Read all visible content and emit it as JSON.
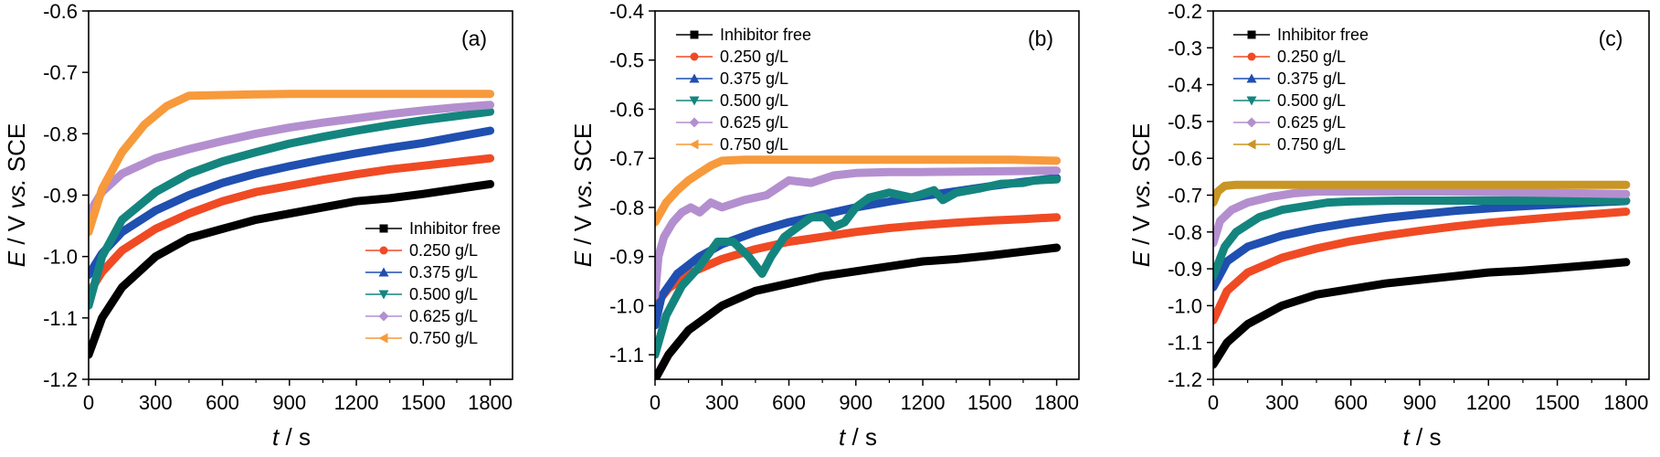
{
  "colors": {
    "Inhibitor free": "#000000",
    "0.250 g/L": "#f04a24",
    "0.375 g/L": "#1f4fb0",
    "0.500 g/L": "#14857e",
    "0.625 g/L": "#b48fcf",
    "0.750 g/L": "#f79a3c",
    "0.750 g/L (c)": "#c99524"
  },
  "chart_data": [
    {
      "type": "line",
      "panel_label": "(a)",
      "xlabel_italic": "t",
      "xlabel_rest": " / s",
      "ylabel_italic_1": "E",
      "ylabel_mid": " / V ",
      "ylabel_italic_2": "vs.",
      "ylabel_rest": " SCE",
      "xlim": [
        0,
        1900
      ],
      "ylim": [
        -1.2,
        -0.6
      ],
      "xticks": [
        0,
        300,
        600,
        900,
        1200,
        1500,
        1800
      ],
      "yticks": [
        -1.2,
        -1.1,
        -1.0,
        -0.9,
        -0.8,
        -0.7,
        -0.6
      ],
      "ytick_labels": [
        "-1.2",
        "-1.1",
        "-1.0",
        "-0.9",
        "-0.8",
        "-0.7",
        "-0.6"
      ],
      "legend_position": "lower-right",
      "series": [
        {
          "name": "Inhibitor free",
          "marker": "square",
          "x": [
            0,
            60,
            150,
            300,
            450,
            600,
            750,
            900,
            1050,
            1200,
            1350,
            1500,
            1650,
            1800
          ],
          "y": [
            -1.16,
            -1.1,
            -1.05,
            -1.0,
            -0.97,
            -0.955,
            -0.94,
            -0.93,
            -0.92,
            -0.91,
            -0.905,
            -0.898,
            -0.89,
            -0.882
          ]
        },
        {
          "name": "0.250 g/L",
          "marker": "circle",
          "x": [
            0,
            60,
            150,
            300,
            450,
            600,
            750,
            900,
            1050,
            1200,
            1350,
            1500,
            1650,
            1800
          ],
          "y": [
            -1.06,
            -1.025,
            -0.99,
            -0.955,
            -0.93,
            -0.91,
            -0.895,
            -0.885,
            -0.875,
            -0.866,
            -0.858,
            -0.852,
            -0.846,
            -0.84
          ]
        },
        {
          "name": "0.375 g/L",
          "marker": "triangle-up",
          "x": [
            0,
            60,
            150,
            300,
            450,
            600,
            750,
            900,
            1050,
            1200,
            1350,
            1500,
            1650,
            1800
          ],
          "y": [
            -1.03,
            -0.995,
            -0.96,
            -0.925,
            -0.9,
            -0.88,
            -0.865,
            -0.853,
            -0.842,
            -0.832,
            -0.823,
            -0.815,
            -0.805,
            -0.795
          ]
        },
        {
          "name": "0.500 g/L",
          "marker": "triangle-down",
          "x": [
            0,
            60,
            150,
            300,
            450,
            600,
            750,
            900,
            1050,
            1200,
            1350,
            1500,
            1650,
            1800
          ],
          "y": [
            -1.08,
            -1.0,
            -0.94,
            -0.895,
            -0.865,
            -0.845,
            -0.83,
            -0.816,
            -0.805,
            -0.795,
            -0.786,
            -0.778,
            -0.771,
            -0.764
          ]
        },
        {
          "name": "0.625 g/L",
          "marker": "diamond",
          "x": [
            0,
            60,
            150,
            300,
            450,
            600,
            750,
            900,
            1050,
            1200,
            1350,
            1500,
            1650,
            1800
          ],
          "y": [
            -0.93,
            -0.895,
            -0.865,
            -0.84,
            -0.825,
            -0.812,
            -0.8,
            -0.79,
            -0.782,
            -0.775,
            -0.768,
            -0.762,
            -0.757,
            -0.753
          ]
        },
        {
          "name": "0.750 g/L",
          "marker": "triangle-left",
          "x": [
            0,
            60,
            150,
            250,
            350,
            450,
            600,
            750,
            900,
            1050,
            1200,
            1350,
            1500,
            1650,
            1800
          ],
          "y": [
            -0.96,
            -0.89,
            -0.83,
            -0.785,
            -0.755,
            -0.738,
            -0.737,
            -0.736,
            -0.735,
            -0.735,
            -0.735,
            -0.735,
            -0.735,
            -0.735,
            -0.735
          ]
        }
      ]
    },
    {
      "type": "line",
      "panel_label": "(b)",
      "xlabel_italic": "t",
      "xlabel_rest": " / s",
      "ylabel_italic_1": "E",
      "ylabel_mid": " / V ",
      "ylabel_italic_2": "vs.",
      "ylabel_rest": " SCE",
      "xlim": [
        0,
        1900
      ],
      "ylim": [
        -1.15,
        -0.4
      ],
      "xticks": [
        0,
        300,
        600,
        900,
        1200,
        1500,
        1800
      ],
      "yticks": [
        -1.1,
        -1.0,
        -0.9,
        -0.8,
        -0.7,
        -0.6,
        -0.5,
        -0.4
      ],
      "ytick_labels": [
        "-1.1",
        "-1.0",
        "-0.9",
        "-0.8",
        "-0.7",
        "-0.6",
        "-0.5",
        "-0.4"
      ],
      "legend_position": "top-left",
      "series": [
        {
          "name": "Inhibitor free",
          "marker": "square",
          "x": [
            0,
            60,
            150,
            300,
            450,
            600,
            750,
            900,
            1050,
            1200,
            1350,
            1500,
            1650,
            1800
          ],
          "y": [
            -1.15,
            -1.1,
            -1.05,
            -1.0,
            -0.97,
            -0.955,
            -0.94,
            -0.93,
            -0.92,
            -0.91,
            -0.905,
            -0.898,
            -0.89,
            -0.882
          ]
        },
        {
          "name": "0.250 g/L",
          "marker": "circle",
          "x": [
            0,
            60,
            150,
            300,
            450,
            600,
            750,
            900,
            1050,
            1200,
            1350,
            1500,
            1650,
            1800
          ],
          "y": [
            -1.0,
            -0.965,
            -0.935,
            -0.905,
            -0.885,
            -0.87,
            -0.86,
            -0.85,
            -0.842,
            -0.836,
            -0.831,
            -0.827,
            -0.824,
            -0.82
          ]
        },
        {
          "name": "0.375 g/L",
          "marker": "triangle-up",
          "x": [
            0,
            30,
            100,
            200,
            300,
            450,
            600,
            750,
            900,
            1050,
            1200,
            1350,
            1500,
            1650,
            1800
          ],
          "y": [
            -1.04,
            -0.98,
            -0.935,
            -0.9,
            -0.875,
            -0.85,
            -0.83,
            -0.815,
            -0.8,
            -0.788,
            -0.777,
            -0.767,
            -0.757,
            -0.748,
            -0.74
          ]
        },
        {
          "name": "0.500 g/L",
          "marker": "triangle-down",
          "x": [
            0,
            50,
            120,
            200,
            280,
            350,
            420,
            480,
            520,
            580,
            640,
            700,
            760,
            800,
            850,
            900,
            960,
            1050,
            1150,
            1250,
            1290,
            1350,
            1450,
            1550,
            1650,
            1700,
            1800
          ],
          "y": [
            -1.1,
            -1.02,
            -0.96,
            -0.92,
            -0.87,
            -0.87,
            -0.9,
            -0.935,
            -0.9,
            -0.86,
            -0.84,
            -0.82,
            -0.82,
            -0.84,
            -0.83,
            -0.8,
            -0.78,
            -0.77,
            -0.78,
            -0.765,
            -0.785,
            -0.77,
            -0.762,
            -0.752,
            -0.75,
            -0.745,
            -0.743
          ]
        },
        {
          "name": "0.625 g/L",
          "marker": "diamond",
          "x": [
            0,
            15,
            40,
            80,
            120,
            160,
            200,
            250,
            300,
            400,
            500,
            600,
            700,
            800,
            900,
            1050,
            1200,
            1400,
            1600,
            1800
          ],
          "y": [
            -0.98,
            -0.9,
            -0.86,
            -0.83,
            -0.81,
            -0.8,
            -0.81,
            -0.79,
            -0.8,
            -0.785,
            -0.775,
            -0.745,
            -0.75,
            -0.735,
            -0.73,
            -0.728,
            -0.728,
            -0.727,
            -0.726,
            -0.725
          ]
        },
        {
          "name": "0.750 g/L",
          "marker": "triangle-left",
          "x": [
            0,
            50,
            100,
            150,
            200,
            250,
            300,
            400,
            500,
            600,
            800,
            1000,
            1200,
            1400,
            1600,
            1800
          ],
          "y": [
            -0.83,
            -0.79,
            -0.765,
            -0.745,
            -0.73,
            -0.715,
            -0.705,
            -0.703,
            -0.703,
            -0.703,
            -0.703,
            -0.703,
            -0.703,
            -0.703,
            -0.703,
            -0.705
          ]
        }
      ]
    },
    {
      "type": "line",
      "panel_label": "(c)",
      "xlabel_italic": "t",
      "xlabel_rest": " / s",
      "ylabel_italic_1": "E",
      "ylabel_mid": " / V ",
      "ylabel_italic_2": "vs.",
      "ylabel_rest": " SCE",
      "xlim": [
        0,
        1900
      ],
      "ylim": [
        -1.2,
        -0.2
      ],
      "xticks": [
        0,
        300,
        600,
        900,
        1200,
        1500,
        1800
      ],
      "yticks": [
        -1.2,
        -1.1,
        -1.0,
        -0.9,
        -0.8,
        -0.7,
        -0.6,
        -0.5,
        -0.4,
        -0.3,
        -0.2
      ],
      "ytick_labels": [
        "-1.2",
        "-1.1",
        "-1.0",
        "-0.9",
        "-0.8",
        "-0.7",
        "-0.6",
        "-0.5",
        "-0.4",
        "-0.3",
        "-0.2"
      ],
      "legend_position": "top-left",
      "series": [
        {
          "name": "Inhibitor free",
          "marker": "square",
          "x": [
            0,
            60,
            150,
            300,
            450,
            600,
            750,
            900,
            1050,
            1200,
            1350,
            1500,
            1650,
            1800
          ],
          "y": [
            -1.16,
            -1.1,
            -1.05,
            -1.0,
            -0.97,
            -0.955,
            -0.94,
            -0.93,
            -0.92,
            -0.91,
            -0.905,
            -0.898,
            -0.89,
            -0.882
          ]
        },
        {
          "name": "0.250 g/L",
          "marker": "circle",
          "x": [
            0,
            60,
            150,
            300,
            450,
            600,
            750,
            900,
            1050,
            1200,
            1350,
            1500,
            1650,
            1800
          ],
          "y": [
            -1.04,
            -0.96,
            -0.91,
            -0.87,
            -0.845,
            -0.825,
            -0.81,
            -0.797,
            -0.785,
            -0.775,
            -0.767,
            -0.759,
            -0.752,
            -0.745
          ]
        },
        {
          "name": "0.375 g/L",
          "marker": "triangle-up",
          "x": [
            0,
            60,
            150,
            300,
            450,
            600,
            750,
            900,
            1050,
            1200,
            1350,
            1500,
            1650,
            1800
          ],
          "y": [
            -0.95,
            -0.88,
            -0.84,
            -0.81,
            -0.79,
            -0.775,
            -0.762,
            -0.752,
            -0.743,
            -0.736,
            -0.73,
            -0.725,
            -0.72,
            -0.716
          ]
        },
        {
          "name": "0.500 g/L",
          "marker": "triangle-down",
          "x": [
            0,
            50,
            100,
            200,
            300,
            400,
            500,
            600,
            800,
            1000,
            1200,
            1400,
            1600,
            1800
          ],
          "y": [
            -0.92,
            -0.84,
            -0.8,
            -0.76,
            -0.74,
            -0.73,
            -0.72,
            -0.717,
            -0.715,
            -0.715,
            -0.715,
            -0.715,
            -0.715,
            -0.715
          ]
        },
        {
          "name": "0.625 g/L",
          "marker": "diamond",
          "x": [
            0,
            30,
            80,
            150,
            250,
            350,
            450,
            600,
            800,
            1000,
            1200,
            1400,
            1600,
            1800
          ],
          "y": [
            -0.83,
            -0.77,
            -0.74,
            -0.72,
            -0.705,
            -0.695,
            -0.69,
            -0.69,
            -0.69,
            -0.69,
            -0.692,
            -0.693,
            -0.695,
            -0.697
          ]
        },
        {
          "name": "0.750 g/L",
          "marker": "triangle-left",
          "x": [
            0,
            20,
            50,
            100,
            200,
            300,
            500,
            700,
            900,
            1100,
            1300,
            1500,
            1700,
            1800
          ],
          "y": [
            -0.72,
            -0.69,
            -0.675,
            -0.672,
            -0.672,
            -0.672,
            -0.672,
            -0.672,
            -0.672,
            -0.672,
            -0.672,
            -0.672,
            -0.672,
            -0.672
          ]
        }
      ]
    }
  ]
}
